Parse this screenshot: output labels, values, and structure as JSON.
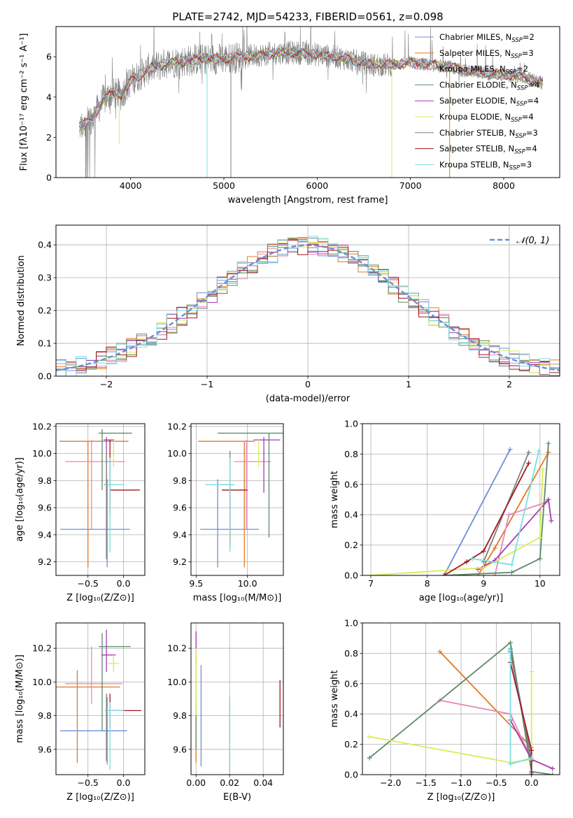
{
  "figure": {
    "title": "PLATE=2742, MJD=54233, FIBERID=0561, z=0.098",
    "colors": {
      "Chabrier MILES": "#6d8fd6",
      "Salpeter MILES": "#e07b25",
      "Kroupa MILES": "#e887b7",
      "Chabrier ELODIE": "#5d8a68",
      "Salpeter ELODIE": "#a43bb0",
      "Kroupa ELODIE": "#d9ec54",
      "Chabrier STELIB": "#7f7f7f",
      "Salpeter STELIB": "#a3161b",
      "Kroupa STELIB": "#79dfe2",
      "normal": "#6290d6"
    }
  },
  "chart_data": [
    {
      "id": "spectrum",
      "type": "line",
      "xlabel": "wavelength [Angstrom, rest frame]",
      "ylabel": "Flux [fλ10⁻¹⁷ erg cm⁻² s⁻¹ A⁻¹]",
      "xlim": [
        3200,
        8600
      ],
      "ylim": [
        0,
        7.5
      ],
      "xticks": [
        4000,
        5000,
        6000,
        7000,
        8000
      ],
      "yticks": [
        0,
        2,
        4,
        6
      ],
      "grid": false,
      "legend_position": "top-right",
      "legend": [
        "Chabrier MILES, N_SSP=2",
        "Salpeter MILES, N_SSP=3",
        "Kroupa MILES, N_SSP=2",
        "Chabrier ELODIE, N_SSP=4",
        "Salpeter ELODIE, N_SSP=4",
        "Kroupa ELODIE, N_SSP=4",
        "Chabrier STELIB, N_SSP=3",
        "Salpeter STELIB, N_SSP=4",
        "Kroupa STELIB, N_SSP=3"
      ],
      "data_trend": {
        "x": [
          3450,
          3600,
          3700,
          3800,
          3900,
          4000,
          4200,
          4400,
          4600,
          4800,
          5000,
          5200,
          5400,
          5600,
          5800,
          6000,
          6200,
          6400,
          6600,
          6800,
          7000,
          7200,
          7400,
          7600,
          7800,
          8000,
          8200,
          8400
        ],
        "y": [
          2.5,
          3.0,
          3.8,
          4.2,
          4.1,
          4.8,
          5.4,
          5.7,
          5.8,
          5.9,
          5.9,
          6.0,
          6.1,
          6.2,
          6.2,
          6.1,
          6.0,
          5.8,
          5.6,
          5.6,
          5.7,
          5.6,
          5.5,
          5.3,
          5.2,
          5.1,
          5.0,
          4.7
        ]
      }
    },
    {
      "id": "residuals",
      "type": "histogram",
      "xlabel": "(data-model)/error",
      "ylabel": "Normed distribution",
      "xlim": [
        -2.5,
        2.5
      ],
      "ylim": [
        0,
        0.46
      ],
      "xticks": [
        -2,
        -1,
        0,
        1,
        2
      ],
      "yticks": [
        0.0,
        0.1,
        0.2,
        0.3,
        0.4
      ],
      "grid": true,
      "legend": [
        "N(0,1)"
      ],
      "legend_position": "top-right",
      "normal_curve": {
        "mean": 0,
        "sigma": 1
      }
    },
    {
      "id": "Z_vs_age",
      "type": "errorbar",
      "xlabel": "Z [log₁₀(Z/Z⊙)]",
      "ylabel": "age  [log₁₀(age/yr)]",
      "xlim": [
        -0.95,
        0.3
      ],
      "ylim": [
        9.1,
        10.22
      ],
      "xticks": [
        -0.5,
        0.0
      ],
      "yticks": [
        9.2,
        9.4,
        9.6,
        9.8,
        10.0,
        10.2
      ],
      "grid": true,
      "series": [
        {
          "name": "Chabrier MILES",
          "x": -0.23,
          "y": 9.44,
          "xerr": [
            0.66,
            0.32
          ],
          "yerr": [
            0.28,
            0.37
          ]
        },
        {
          "name": "Salpeter MILES",
          "x": -0.5,
          "y": 10.09,
          "xerr": [
            0.4,
            0.57
          ],
          "yerr": [
            0.93,
            0
          ]
        },
        {
          "name": "Kroupa MILES",
          "x": -0.45,
          "y": 9.94,
          "xerr": [
            0.37,
            0.47
          ],
          "yerr": [
            0.5,
            0.16
          ]
        },
        {
          "name": "Chabrier ELODIE",
          "x": -0.3,
          "y": 10.15,
          "xerr": [
            0.05,
            0.42
          ],
          "yerr": [
            0.42,
            0.03
          ]
        },
        {
          "name": "Salpeter ELODIE",
          "x": -0.24,
          "y": 10.1,
          "xerr": [
            0.04,
            0.11
          ],
          "yerr": [
            0.39,
            0.02
          ]
        },
        {
          "name": "Kroupa ELODIE",
          "x": -0.14,
          "y": 10.0,
          "xerr": [
            0.06,
            0.08
          ],
          "yerr": [
            0.1,
            0.1
          ]
        },
        {
          "name": "Chabrier STELIB",
          "x": -0.24,
          "y": 9.77,
          "xerr": [
            0.03,
            0.05
          ],
          "yerr": [
            0.55,
            0.25
          ]
        },
        {
          "name": "Salpeter STELIB",
          "x": -0.19,
          "y": 9.73,
          "xerr": [
            0.0,
            0.42
          ],
          "yerr": [
            0.18,
            0.37
          ]
        },
        {
          "name": "Kroupa STELIB",
          "x": -0.19,
          "y": 9.77,
          "xerr": [
            0.06,
            0.2
          ],
          "yerr": [
            0.5,
            0.2
          ]
        }
      ]
    },
    {
      "id": "mass_vs_age",
      "type": "errorbar",
      "xlabel": "mass [log₁₀(M/M⊙)]",
      "ylabel": "",
      "xlim": [
        9.45,
        10.35
      ],
      "ylim": [
        9.1,
        10.22
      ],
      "xticks": [
        9.5,
        10.0
      ],
      "yticks": [
        9.2,
        9.4,
        9.6,
        9.8,
        10.0,
        10.2
      ],
      "grid": true,
      "series": [
        {
          "name": "Chabrier MILES",
          "x": 9.71,
          "y": 9.44,
          "xerr": [
            0.17,
            0.4
          ],
          "yerr": [
            0.28,
            0.37
          ]
        },
        {
          "name": "Salpeter MILES",
          "x": 9.97,
          "y": 10.09,
          "xerr": [
            0.45,
            0.1
          ],
          "yerr": [
            0.93,
            0
          ]
        },
        {
          "name": "Kroupa MILES",
          "x": 9.99,
          "y": 9.94,
          "xerr": [
            0.12,
            0.24
          ],
          "yerr": [
            0.5,
            0.16
          ]
        },
        {
          "name": "Chabrier ELODIE",
          "x": 10.21,
          "y": 10.15,
          "xerr": [
            0.5,
            0.15
          ],
          "yerr": [
            0.77,
            0
          ]
        },
        {
          "name": "Salpeter ELODIE",
          "x": 10.16,
          "y": 10.1,
          "xerr": [
            0.1,
            0.16
          ],
          "yerr": [
            0.39,
            0.02
          ]
        },
        {
          "name": "Kroupa ELODIE",
          "x": 10.11,
          "y": 10.0,
          "xerr": [
            0.05,
            0.04
          ],
          "yerr": [
            0.1,
            0.1
          ]
        },
        {
          "name": "Chabrier STELIB",
          "x": 9.83,
          "y": 9.77,
          "xerr": [
            0.1,
            0.04
          ],
          "yerr": [
            0.46,
            0.25
          ]
        },
        {
          "name": "Salpeter STELIB",
          "x": 9.83,
          "y": 9.73,
          "xerr": [
            0.08,
            0.17
          ],
          "yerr": [
            0.42,
            0.02
          ]
        },
        {
          "name": "Kroupa STELIB",
          "x": 9.83,
          "y": 9.77,
          "xerr": [
            0.24,
            0.04
          ],
          "yerr": [
            0.5,
            0.2
          ]
        }
      ]
    },
    {
      "id": "age_vs_weight",
      "type": "line",
      "xlabel": "age  [log₁₀(age/yr)]",
      "ylabel": "mass weight",
      "xlim": [
        6.85,
        10.35
      ],
      "ylim": [
        0,
        1
      ],
      "xticks": [
        7,
        8,
        9,
        10
      ],
      "yticks": [
        0.0,
        0.2,
        0.4,
        0.6,
        0.8,
        1.0
      ],
      "grid": true,
      "series": [
        {
          "name": "Chabrier MILES",
          "x": [
            8.3,
            9.47
          ],
          "y": [
            0.0,
            0.83
          ]
        },
        {
          "name": "Salpeter MILES",
          "x": [
            8.9,
            9.2,
            10.15
          ],
          "y": [
            0.0,
            0.18,
            0.81
          ]
        },
        {
          "name": "Kroupa MILES",
          "x": [
            9.2,
            9.45,
            10.1
          ],
          "y": [
            0.0,
            0.4,
            0.48
          ]
        },
        {
          "name": "Chabrier ELODIE",
          "x": [
            8.3,
            9.5,
            10.0,
            10.15
          ],
          "y": [
            0.0,
            0.02,
            0.11,
            0.87
          ]
        },
        {
          "name": "Salpeter ELODIE",
          "x": [
            8.9,
            9.2,
            10.15,
            10.2
          ],
          "y": [
            0.04,
            0.1,
            0.5,
            0.36
          ]
        },
        {
          "name": "Kroupa ELODIE",
          "x": [
            7.0,
            9.0,
            10.0,
            10.05
          ],
          "y": [
            0.0,
            0.05,
            0.25,
            0.7
          ]
        },
        {
          "name": "Chabrier STELIB",
          "x": [
            9.0,
            9.8
          ],
          "y": [
            0.09,
            0.81
          ]
        },
        {
          "name": "Salpeter STELIB",
          "x": [
            8.3,
            8.7,
            9.0,
            9.8
          ],
          "y": [
            0.0,
            0.09,
            0.16,
            0.74
          ]
        },
        {
          "name": "Kroupa STELIB",
          "x": [
            8.8,
            9.5,
            9.98
          ],
          "y": [
            0.11,
            0.07,
            0.82
          ]
        }
      ]
    },
    {
      "id": "Z_vs_mass",
      "type": "errorbar",
      "xlabel": "Z [log₁₀(Z/Z⊙)]",
      "ylabel": "mass [log₁₀(M/M⊙)]",
      "xlim": [
        -0.95,
        0.3
      ],
      "ylim": [
        9.45,
        10.35
      ],
      "xticks": [
        -0.5,
        0.0
      ],
      "yticks": [
        9.6,
        9.8,
        10.0,
        10.2
      ],
      "grid": true,
      "series": [
        {
          "name": "Chabrier MILES",
          "x": -0.23,
          "y": 9.71,
          "xerr": [
            0.66,
            0.28
          ],
          "yerr": [
            0.2,
            0.2
          ]
        },
        {
          "name": "Salpeter MILES",
          "x": -0.65,
          "y": 9.97,
          "xerr": [
            0.3,
            0.6
          ],
          "yerr": [
            0.45,
            0.1
          ]
        },
        {
          "name": "Kroupa MILES",
          "x": -0.45,
          "y": 9.99,
          "xerr": [
            0.37,
            0.43
          ],
          "yerr": [
            0.12,
            0.22
          ]
        },
        {
          "name": "Chabrier ELODIE",
          "x": -0.3,
          "y": 10.21,
          "xerr": [
            0.05,
            0.4
          ],
          "yerr": [
            0.5,
            0.08
          ]
        },
        {
          "name": "Salpeter ELODIE",
          "x": -0.24,
          "y": 10.16,
          "xerr": [
            0.07,
            0.13
          ],
          "yerr": [
            0.1,
            0.15
          ]
        },
        {
          "name": "Kroupa ELODIE",
          "x": -0.14,
          "y": 10.11,
          "xerr": [
            0.08,
            0.08
          ],
          "yerr": [
            0.05,
            0.05
          ]
        },
        {
          "name": "Chabrier STELIB",
          "x": -0.24,
          "y": 9.83,
          "xerr": [
            0.02,
            0.04
          ],
          "yerr": [
            0.3,
            0.1
          ]
        },
        {
          "name": "Salpeter STELIB",
          "x": -0.19,
          "y": 9.83,
          "xerr": [
            0.0,
            0.44
          ],
          "yerr": [
            0.1,
            0.1
          ]
        },
        {
          "name": "Kroupa STELIB",
          "x": -0.19,
          "y": 9.83,
          "xerr": [
            0.06,
            0.2
          ],
          "yerr": [
            0.35,
            0.05
          ]
        }
      ]
    },
    {
      "id": "ebv_vs_mass",
      "type": "errorbar",
      "xlabel": "E(B-V)",
      "ylabel": "",
      "xlim": [
        -0.003,
        0.052
      ],
      "ylim": [
        9.45,
        10.35
      ],
      "xticks": [
        0.0,
        0.02,
        0.04
      ],
      "yticks": [
        9.6,
        9.8,
        10.0,
        10.2
      ],
      "grid": true,
      "series": [
        {
          "name": "Chabrier MILES",
          "x": 0.003,
          "y": 9.8,
          "xerr": [
            0,
            0
          ],
          "yerr": [
            0.3,
            0.3
          ]
        },
        {
          "name": "Salpeter MILES",
          "x": 0.0,
          "y": 9.9,
          "xerr": [
            0,
            0
          ],
          "yerr": [
            0.38,
            0.1
          ]
        },
        {
          "name": "Kroupa MILES",
          "x": 0.0,
          "y": 10.1,
          "xerr": [
            0,
            0
          ],
          "yerr": [
            0.2,
            0.2
          ]
        },
        {
          "name": "Chabrier ELODIE",
          "x": 0.0,
          "y": 9.75,
          "xerr": [
            0,
            0
          ],
          "yerr": [
            0.15,
            0.15
          ]
        },
        {
          "name": "Salpeter ELODIE",
          "x": 0.0,
          "y": 10.2,
          "xerr": [
            0,
            0
          ],
          "yerr": [
            0.1,
            0.1
          ]
        },
        {
          "name": "Kroupa ELODIE",
          "x": 0.0,
          "y": 10.0,
          "xerr": [
            0,
            0
          ],
          "yerr": [
            0.2,
            0.2
          ]
        },
        {
          "name": "Chabrier STELIB",
          "x": 0.02,
          "y": 9.7,
          "xerr": [
            0,
            0
          ],
          "yerr": [
            0.25,
            0.2
          ]
        },
        {
          "name": "Salpeter STELIB",
          "x": 0.05,
          "y": 9.87,
          "xerr": [
            0,
            0
          ],
          "yerr": [
            0.14,
            0.14
          ]
        },
        {
          "name": "Kroupa STELIB",
          "x": 0.02,
          "y": 9.7,
          "xerr": [
            0,
            0
          ],
          "yerr": [
            0.25,
            0.22
          ]
        }
      ]
    },
    {
      "id": "Z_vs_weight",
      "type": "line",
      "xlabel": "Z [log₁₀(Z/Z⊙)]",
      "ylabel": "mass weight",
      "xlim": [
        -2.4,
        0.4
      ],
      "ylim": [
        0,
        1
      ],
      "xticks": [
        -2.0,
        -1.5,
        -1.0,
        -0.5,
        0.0
      ],
      "yticks": [
        0.0,
        0.2,
        0.4,
        0.6,
        0.8,
        1.0
      ],
      "grid": true,
      "series": [
        {
          "name": "Chabrier MILES",
          "x": [
            -0.3,
            0.0,
            0.0
          ],
          "y": [
            0.83,
            0.1,
            0.01
          ]
        },
        {
          "name": "Salpeter MILES",
          "x": [
            -1.3,
            0.0
          ],
          "y": [
            0.81,
            0.18
          ]
        },
        {
          "name": "Kroupa MILES",
          "x": [
            -1.3,
            -0.3,
            0.0
          ],
          "y": [
            0.49,
            0.4,
            0.1
          ]
        },
        {
          "name": "Chabrier ELODIE",
          "x": [
            -2.3,
            -0.3,
            0.0,
            0.3
          ],
          "y": [
            0.11,
            0.87,
            0.02,
            0.0
          ]
        },
        {
          "name": "Salpeter ELODIE",
          "x": [
            -0.3,
            0.0,
            0.3
          ],
          "y": [
            0.36,
            0.1,
            0.04
          ]
        },
        {
          "name": "Kroupa ELODIE",
          "x": [
            -2.3,
            -0.3,
            0.0,
            0.0
          ],
          "y": [
            0.25,
            0.08,
            0.1,
            0.68
          ]
        },
        {
          "name": "Chabrier STELIB",
          "x": [
            -0.3,
            0.0
          ],
          "y": [
            0.81,
            0.09
          ]
        },
        {
          "name": "Salpeter STELIB",
          "x": [
            -0.3,
            0.0,
            0.0
          ],
          "y": [
            0.74,
            0.16,
            0.0
          ]
        },
        {
          "name": "Kroupa STELIB",
          "x": [
            -0.3,
            -0.3,
            0.0
          ],
          "y": [
            0.82,
            0.07,
            0.11
          ]
        }
      ]
    }
  ]
}
